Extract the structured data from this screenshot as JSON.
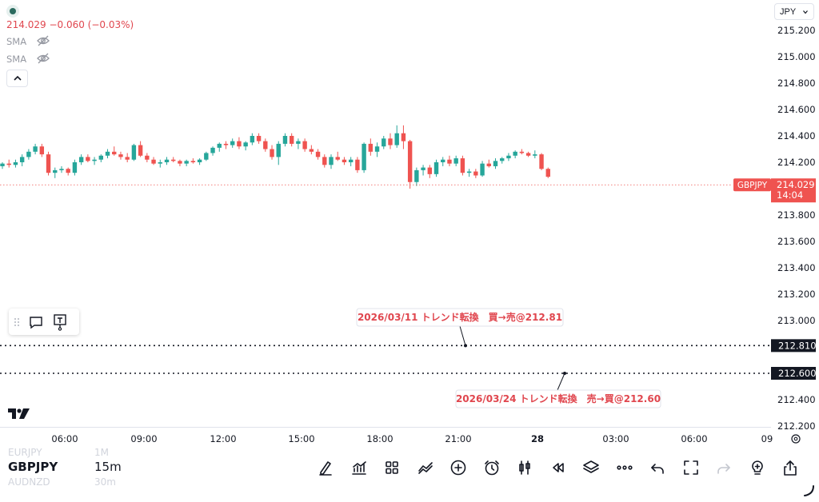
{
  "legend": {
    "price_change": "214.029 −0.060 (−0.03%)",
    "indicators": [
      {
        "label": "SMA"
      },
      {
        "label": "SMA"
      }
    ]
  },
  "currency": {
    "label": "JPY"
  },
  "last_price": {
    "symbol": "GBPJPY",
    "price": "214.029",
    "countdown": "14:04"
  },
  "alert_lines": [
    {
      "price": "212.810",
      "note": "2026/03/11 トレンド転換　買→売@212.81"
    },
    {
      "price": "212.600",
      "note": "2026/03/24 トレンド転換　売→買@212.60"
    }
  ],
  "chart_data": {
    "type": "candlestick",
    "ylim": [
      212.2,
      215.2
    ],
    "y_ticks": [
      "215.200",
      "215.000",
      "214.800",
      "214.600",
      "214.400",
      "214.200",
      "214.000",
      "213.800",
      "213.600",
      "213.400",
      "213.200",
      "213.000",
      "212.800",
      "212.600",
      "212.400",
      "212.200"
    ],
    "x_ticks": [
      "06:00",
      "09:00",
      "12:00",
      "15:00",
      "18:00",
      "21:00",
      "28",
      "03:00",
      "06:00",
      "09"
    ],
    "candles_ohlc": [
      [
        214.17,
        214.2,
        214.15,
        214.19
      ],
      [
        214.19,
        214.22,
        214.16,
        214.18
      ],
      [
        214.18,
        214.22,
        214.16,
        214.2
      ],
      [
        214.2,
        214.26,
        214.17,
        214.24
      ],
      [
        214.24,
        214.3,
        214.22,
        214.28
      ],
      [
        214.28,
        214.34,
        214.26,
        214.32
      ],
      [
        214.32,
        214.34,
        214.24,
        214.26
      ],
      [
        214.26,
        214.28,
        214.1,
        214.12
      ],
      [
        214.12,
        214.16,
        214.08,
        214.14
      ],
      [
        214.14,
        214.17,
        214.12,
        214.15
      ],
      [
        214.15,
        214.16,
        214.1,
        214.12
      ],
      [
        214.12,
        214.22,
        214.1,
        214.2
      ],
      [
        214.2,
        214.26,
        214.18,
        214.24
      ],
      [
        214.24,
        214.26,
        214.2,
        214.21
      ],
      [
        214.21,
        214.24,
        214.18,
        214.22
      ],
      [
        214.22,
        214.26,
        214.2,
        214.25
      ],
      [
        214.25,
        214.3,
        214.23,
        214.28
      ],
      [
        214.28,
        214.32,
        214.25,
        214.26
      ],
      [
        214.26,
        214.28,
        214.22,
        214.24
      ],
      [
        214.24,
        214.27,
        214.2,
        214.22
      ],
      [
        214.22,
        214.34,
        214.21,
        214.33
      ],
      [
        214.33,
        214.36,
        214.24,
        214.25
      ],
      [
        214.25,
        214.27,
        214.2,
        214.22
      ],
      [
        214.22,
        214.24,
        214.18,
        214.19
      ],
      [
        214.19,
        214.22,
        214.16,
        214.2
      ],
      [
        214.2,
        214.24,
        214.18,
        214.22
      ],
      [
        214.22,
        214.24,
        214.2,
        214.21
      ],
      [
        214.21,
        214.22,
        214.17,
        214.19
      ],
      [
        214.19,
        214.22,
        214.17,
        214.21
      ],
      [
        214.21,
        214.23,
        214.19,
        214.2
      ],
      [
        214.2,
        214.23,
        214.18,
        214.22
      ],
      [
        214.22,
        214.28,
        214.21,
        214.27
      ],
      [
        214.27,
        214.32,
        214.25,
        214.31
      ],
      [
        214.31,
        214.35,
        214.28,
        214.34
      ],
      [
        214.34,
        214.36,
        214.3,
        214.33
      ],
      [
        214.33,
        214.38,
        214.31,
        214.36
      ],
      [
        214.36,
        214.39,
        214.3,
        214.32
      ],
      [
        214.32,
        214.36,
        214.29,
        214.35
      ],
      [
        214.35,
        214.42,
        214.33,
        214.4
      ],
      [
        214.4,
        214.42,
        214.34,
        214.36
      ],
      [
        214.36,
        214.38,
        214.28,
        214.3
      ],
      [
        214.3,
        214.33,
        214.22,
        214.24
      ],
      [
        214.24,
        214.36,
        214.18,
        214.34
      ],
      [
        214.34,
        214.42,
        214.32,
        214.4
      ],
      [
        214.4,
        214.42,
        214.32,
        214.34
      ],
      [
        214.34,
        214.38,
        214.3,
        214.36
      ],
      [
        214.36,
        214.38,
        214.28,
        214.3
      ],
      [
        214.3,
        214.33,
        214.26,
        214.28
      ],
      [
        214.28,
        214.3,
        214.22,
        214.24
      ],
      [
        214.24,
        214.26,
        214.16,
        214.18
      ],
      [
        214.18,
        214.26,
        214.15,
        214.24
      ],
      [
        214.24,
        214.28,
        214.21,
        214.22
      ],
      [
        214.22,
        214.24,
        214.18,
        214.2
      ],
      [
        214.2,
        214.24,
        214.17,
        214.22
      ],
      [
        214.22,
        214.24,
        214.12,
        214.14
      ],
      [
        214.14,
        214.35,
        214.12,
        214.34
      ],
      [
        214.34,
        214.38,
        214.25,
        214.28
      ],
      [
        214.28,
        214.35,
        214.24,
        214.32
      ],
      [
        214.32,
        214.4,
        214.3,
        214.38
      ],
      [
        214.38,
        214.42,
        214.3,
        214.33
      ],
      [
        214.33,
        214.48,
        214.31,
        214.42
      ],
      [
        214.42,
        214.48,
        214.3,
        214.36
      ],
      [
        214.36,
        214.37,
        214.0,
        214.05
      ],
      [
        214.05,
        214.16,
        214.02,
        214.14
      ],
      [
        214.14,
        214.18,
        214.1,
        214.16
      ],
      [
        214.16,
        214.18,
        214.08,
        214.11
      ],
      [
        214.11,
        214.22,
        214.09,
        214.2
      ],
      [
        214.2,
        214.24,
        214.17,
        214.22
      ],
      [
        214.22,
        214.25,
        214.17,
        214.19
      ],
      [
        214.19,
        214.25,
        214.17,
        214.23
      ],
      [
        214.23,
        214.25,
        214.1,
        214.12
      ],
      [
        214.12,
        214.15,
        214.09,
        214.13
      ],
      [
        214.13,
        214.15,
        214.08,
        214.1
      ],
      [
        214.1,
        214.21,
        214.09,
        214.19
      ],
      [
        214.19,
        214.22,
        214.16,
        214.17
      ],
      [
        214.17,
        214.23,
        214.15,
        214.21
      ],
      [
        214.21,
        214.24,
        214.19,
        214.23
      ],
      [
        214.23,
        214.27,
        214.21,
        214.25
      ],
      [
        214.25,
        214.29,
        214.23,
        214.28
      ],
      [
        214.28,
        214.3,
        214.26,
        214.27
      ],
      [
        214.27,
        214.28,
        214.24,
        214.25
      ],
      [
        214.25,
        214.29,
        214.23,
        214.26
      ],
      [
        214.26,
        214.27,
        214.14,
        214.15
      ],
      [
        214.15,
        214.16,
        214.08,
        214.09
      ]
    ],
    "last_price": 214.029,
    "horizontal_lines": [
      212.81,
      212.6
    ]
  }
}
